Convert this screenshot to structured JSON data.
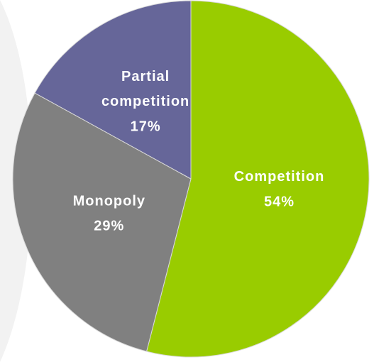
{
  "chart_data": {
    "type": "pie",
    "categories": [
      "Competition",
      "Monopoly",
      "Partial competition"
    ],
    "values": [
      54,
      29,
      17
    ],
    "value_labels": [
      "54%",
      "29%",
      "17%"
    ],
    "colors": [
      "#99cc00",
      "#808080",
      "#666699"
    ]
  }
}
